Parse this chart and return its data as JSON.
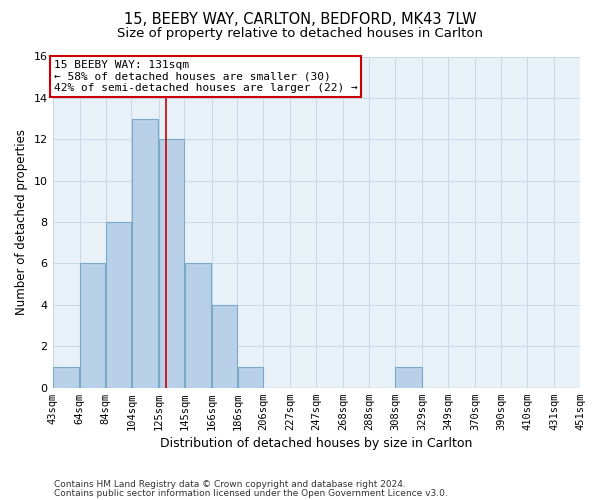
{
  "title_line1": "15, BEEBY WAY, CARLTON, BEDFORD, MK43 7LW",
  "title_line2": "Size of property relative to detached houses in Carlton",
  "xlabel": "Distribution of detached houses by size in Carlton",
  "ylabel": "Number of detached properties",
  "bin_edges": [
    43,
    64,
    84,
    104,
    125,
    145,
    166,
    186,
    206,
    227,
    247,
    268,
    288,
    308,
    329,
    349,
    370,
    390,
    410,
    431,
    451
  ],
  "bar_heights": [
    1,
    6,
    8,
    13,
    12,
    6,
    4,
    1,
    0,
    0,
    0,
    0,
    0,
    1,
    0,
    0,
    0,
    0,
    0,
    0
  ],
  "bar_color": "#b8d0e8",
  "bar_edge_color": "#7aaac8",
  "vline_x": 131,
  "vline_color": "#cc0000",
  "annotation_text": "15 BEEBY WAY: 131sqm\n← 58% of detached houses are smaller (30)\n42% of semi-detached houses are larger (22) →",
  "annotation_box_color": "#ffffff",
  "annotation_box_edge": "#cc0000",
  "ylim": [
    0,
    16
  ],
  "yticks": [
    0,
    2,
    4,
    6,
    8,
    10,
    12,
    14,
    16
  ],
  "grid_color": "#c8d8e8",
  "bg_color": "#e8f0f8",
  "footer_line1": "Contains HM Land Registry data © Crown copyright and database right 2024.",
  "footer_line2": "Contains public sector information licensed under the Open Government Licence v3.0.",
  "title_fontsize": 10.5,
  "subtitle_fontsize": 9.5,
  "tick_label_fontsize": 7.5,
  "ylabel_fontsize": 8.5,
  "xlabel_fontsize": 9,
  "annotation_fontsize": 8,
  "footer_fontsize": 6.5
}
